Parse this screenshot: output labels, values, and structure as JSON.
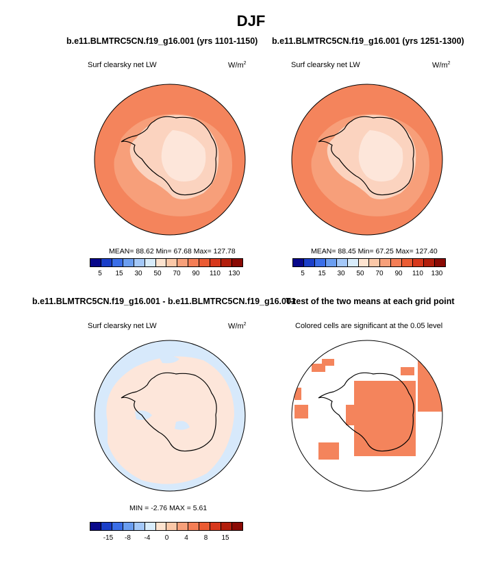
{
  "figure": {
    "season": "DJF"
  },
  "panels": {
    "top_left": {
      "case": "b.e11.BLMTRC5CN.f19_g16.001 (yrs 1101-1150)",
      "variable": "Surf clearsky net LW",
      "units": "W/m",
      "units_sup": "2",
      "stats_text": "MEAN=  88.62  Min=  67.68  Max= 127.78"
    },
    "top_right": {
      "case": "b.e11.BLMTRC5CN.f19_g16.001 (yrs 1251-1300)",
      "variable": "Surf clearsky net LW",
      "units": "W/m",
      "units_sup": "2",
      "stats_text": "MEAN=  88.45  Min=  67.25  Max= 127.40"
    },
    "bottom_left": {
      "case": "b.e11.BLMTRC5CN.f19_g16.001 - b.e11.BLMTRC5CN.f19_g16.001",
      "variable": "Surf clearsky net LW",
      "units": "W/m",
      "units_sup": "2",
      "stats_text": "MIN =  -2.76 MAX =   5.61"
    },
    "bottom_right": {
      "title": "T-test of the two means at each grid point",
      "subtitle": "Colored cells are significant at the 0.05 level"
    }
  },
  "colorbars": {
    "abs": {
      "labels": [
        "5",
        "15",
        "30",
        "50",
        "70",
        "90",
        "110",
        "130"
      ],
      "colors": [
        "#08088a",
        "#1a3ec8",
        "#3a6ee8",
        "#6b9ef0",
        "#a4c8f8",
        "#d8ecfb",
        "#fde3cf",
        "#fbc8a8",
        "#f7a07a",
        "#f47e56",
        "#ea5b33",
        "#d7381c",
        "#b21e0c",
        "#8a0a04"
      ]
    },
    "diff": {
      "labels": [
        "-15",
        "-8",
        "-4",
        "0",
        "4",
        "8",
        "15"
      ],
      "colors": [
        "#08088a",
        "#1a3ec8",
        "#3a6ee8",
        "#6b9ef0",
        "#a4c8f8",
        "#d8ecfb",
        "#fde3cf",
        "#fbc8a8",
        "#f7a07a",
        "#f47e56",
        "#ea5b33",
        "#d7381c",
        "#b21e0c",
        "#8a0a04"
      ]
    }
  },
  "map_colors": {
    "ocean_mean": "#f4845c",
    "ocean_inner": "#f79f7a",
    "ice_high": "#fbd3bf",
    "ice_peak": "#fde6da",
    "diff_neg": "#d7e9fb",
    "diff_pos": "#fde6da",
    "ttest_cell": "#f4845c"
  }
}
